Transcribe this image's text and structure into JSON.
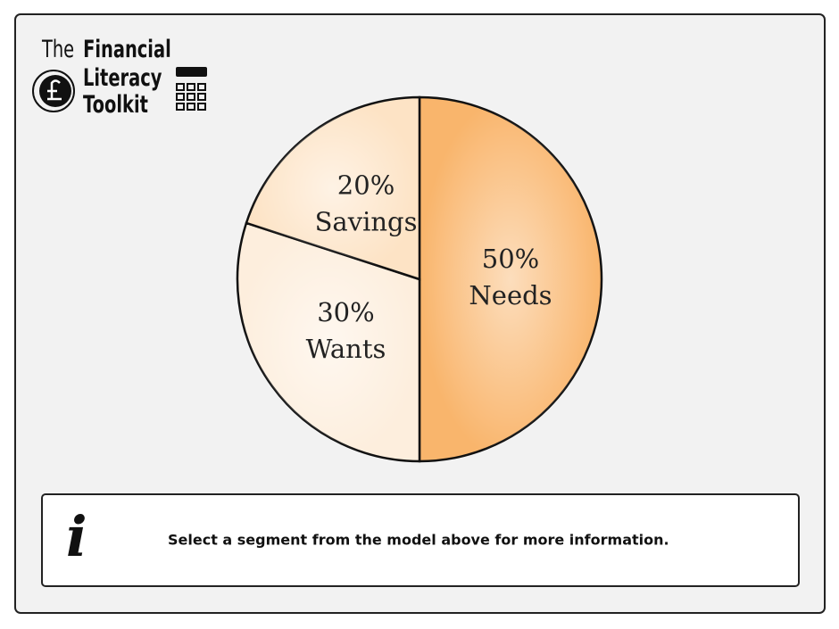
{
  "logo": {
    "the": "The",
    "financial": "Financial",
    "literacy": "Literacy",
    "toolkit": "Toolkit"
  },
  "chart_data": {
    "type": "pie",
    "categories": [
      "Needs",
      "Wants",
      "Savings"
    ],
    "values": [
      50,
      30,
      20
    ],
    "value_labels": [
      "50%",
      "30%",
      "20%"
    ],
    "colors": [
      "#f9b56c",
      "#fdeedd",
      "#fde3c5"
    ]
  },
  "info": {
    "icon": "i",
    "message": "Select a segment from the model above for more information."
  }
}
